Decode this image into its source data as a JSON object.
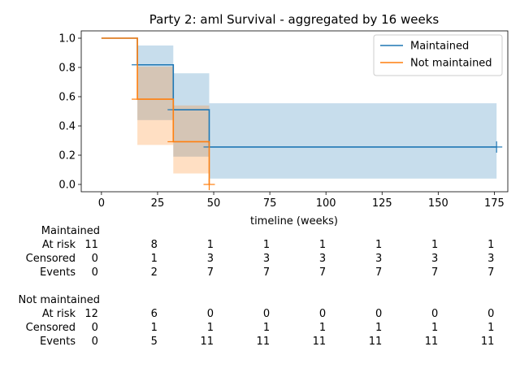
{
  "chart_data": {
    "type": "line",
    "subtype": "kaplan-meier step survival with confidence bands",
    "title": "Party 2: aml Survival - aggregated by 16 weeks",
    "xlabel": "timeline (weeks)",
    "ylabel": "",
    "xlim": [
      -9,
      181
    ],
    "ylim": [
      -0.05,
      1.05
    ],
    "x_ticks": [
      0,
      25,
      50,
      75,
      100,
      125,
      150,
      175
    ],
    "y_ticks": [
      0.0,
      0.2,
      0.4,
      0.6,
      0.8,
      1.0
    ],
    "x_tick_labels": [
      "0",
      "25",
      "50",
      "75",
      "100",
      "125",
      "150",
      "175"
    ],
    "y_tick_labels": [
      "0.0",
      "0.2",
      "0.4",
      "0.6",
      "0.8",
      "1.0"
    ],
    "grid": false,
    "legend_position": "top-right",
    "series": [
      {
        "name": "Maintained",
        "color": "#1f77b4",
        "steps": [
          [
            0,
            1.0
          ],
          [
            16,
            0.818
          ],
          [
            32,
            0.511
          ],
          [
            48,
            0.256
          ],
          [
            176,
            0.256
          ]
        ],
        "ci": [
          {
            "x0": 16,
            "x1": 32,
            "lower": 0.44,
            "upper": 0.95
          },
          {
            "x0": 32,
            "x1": 48,
            "lower": 0.19,
            "upper": 0.76
          },
          {
            "x0": 48,
            "x1": 176,
            "lower": 0.04,
            "upper": 0.555
          }
        ],
        "censor_marks": [
          [
            16,
            0.818
          ],
          [
            32,
            0.511
          ],
          [
            48,
            0.256
          ],
          [
            176,
            0.256
          ]
        ]
      },
      {
        "name": "Not maintained",
        "color": "#ff7f0e",
        "steps": [
          [
            0,
            1.0
          ],
          [
            16,
            0.583
          ],
          [
            32,
            0.292
          ],
          [
            48,
            0.0
          ]
        ],
        "ci": [
          {
            "x0": 16,
            "x1": 32,
            "lower": 0.27,
            "upper": 0.805
          },
          {
            "x0": 32,
            "x1": 48,
            "lower": 0.075,
            "upper": 0.54
          }
        ],
        "censor_marks": [
          [
            16,
            0.583
          ],
          [
            32,
            0.292
          ],
          [
            48,
            0.0
          ]
        ]
      }
    ],
    "at_risk_table": {
      "times": [
        0,
        25,
        50,
        75,
        100,
        125,
        150,
        175
      ],
      "groups": [
        {
          "name": "Maintained",
          "rows": [
            {
              "label": "At risk",
              "values": [
                "11",
                "8",
                "1",
                "1",
                "1",
                "1",
                "1",
                "1"
              ]
            },
            {
              "label": "Censored",
              "values": [
                "0",
                "1",
                "3",
                "3",
                "3",
                "3",
                "3",
                "3"
              ]
            },
            {
              "label": "Events",
              "values": [
                "0",
                "2",
                "7",
                "7",
                "7",
                "7",
                "7",
                "7"
              ]
            }
          ]
        },
        {
          "name": "Not maintained",
          "rows": [
            {
              "label": "At risk",
              "values": [
                "12",
                "6",
                "0",
                "0",
                "0",
                "0",
                "0",
                "0"
              ]
            },
            {
              "label": "Censored",
              "values": [
                "0",
                "1",
                "1",
                "1",
                "1",
                "1",
                "1",
                "1"
              ]
            },
            {
              "label": "Events",
              "values": [
                "0",
                "5",
                "11",
                "11",
                "11",
                "11",
                "11",
                "11"
              ]
            }
          ]
        }
      ]
    }
  }
}
